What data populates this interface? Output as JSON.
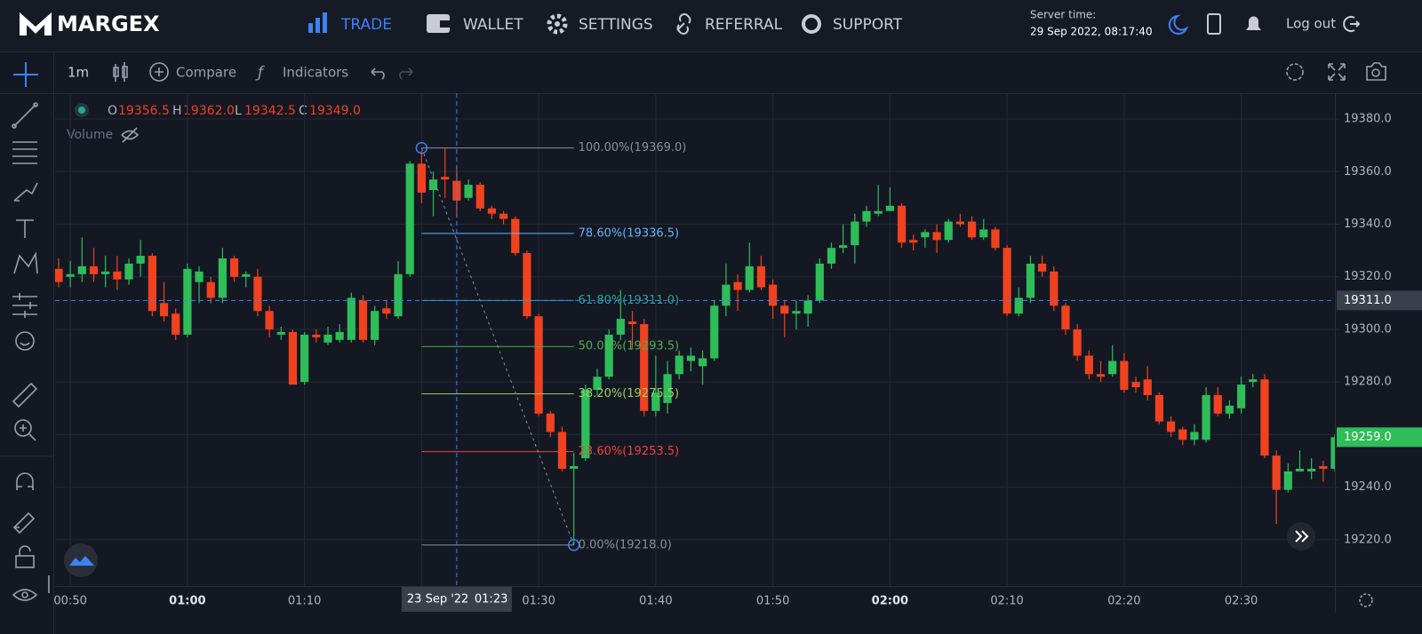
{
  "header": {
    "logo": "MARGEX",
    "nav": [
      "TRADE",
      "WALLET",
      "SETTINGS",
      "REFERRAL",
      "SUPPORT"
    ],
    "server_time_label": "Server time:",
    "server_time": "29 Sep 2022, 08:17:40",
    "logout": "Log out"
  },
  "toolbar": {
    "interval": "1m",
    "compare": "Compare",
    "indicators": "Indicators"
  },
  "legend": {
    "o_label": "O",
    "open": "19356.5",
    "h_label": "H",
    "high": "19362.0",
    "l_label": "L",
    "low": "19342.5",
    "c_label": "C",
    "close": "19349.0",
    "volume": "Volume"
  },
  "chart_data": {
    "type": "candlestick",
    "up_color": "#2ebd59",
    "down_color": "#f0421f",
    "grid": true,
    "x": [
      49,
      50,
      51,
      52,
      53,
      54,
      55,
      56,
      57,
      58,
      59,
      60,
      61,
      62,
      63,
      64,
      65,
      66,
      67,
      68,
      69,
      70,
      71,
      72,
      73,
      74,
      75,
      76,
      77,
      78,
      79,
      80,
      81,
      82,
      83,
      84,
      85,
      86,
      87,
      88,
      89,
      90,
      91,
      92,
      93,
      94,
      95,
      96,
      97,
      98,
      99,
      100,
      101,
      102,
      103,
      104,
      105,
      106,
      107,
      108,
      109,
      110,
      111,
      112,
      113,
      114,
      115,
      116,
      117,
      118,
      119,
      120,
      121,
      122,
      123,
      124,
      125,
      126,
      127,
      128,
      129,
      130,
      131,
      132,
      133,
      134,
      135,
      136,
      137,
      138,
      139,
      140,
      141,
      142,
      143,
      144,
      145,
      146,
      147,
      148,
      149,
      150,
      151,
      152,
      153,
      154,
      155,
      156,
      157,
      158
    ],
    "open": [
      19323,
      19320,
      19321,
      19324,
      19321,
      19322,
      19319,
      19325,
      19328,
      19310,
      19306,
      19298,
      19318,
      19318,
      19312,
      19327,
      19320,
      19320,
      19307,
      19298,
      19299,
      19280,
      19298,
      19295,
      19296,
      19296,
      19311,
      19296,
      19308,
      19305,
      19321,
      19363,
      19353,
      19358,
      19356.5,
      19350,
      19355,
      19346,
      19344,
      19342,
      19329,
      19305,
      19268,
      19261,
      19247,
      19251,
      19277,
      19282,
      19298,
      19303,
      19302,
      19269,
      19272,
      19283,
      19288,
      19286,
      19289,
      19309,
      19318,
      19315,
      19324,
      19317,
      19309,
      19306,
      19306,
      19311,
      19325,
      19331,
      19332,
      19341,
      19344,
      19345,
      19347,
      19334,
      19335,
      19337,
      19334,
      19341,
      19341,
      19335,
      19338,
      19331,
      19306,
      19312,
      19325,
      19322,
      19309,
      19300,
      19290,
      19283,
      19283,
      19288,
      19280,
      19281,
      19275,
      19265,
      19262,
      19258,
      19258,
      19275,
      19268,
      19270,
      19280,
      19281,
      19252,
      19239,
      19246,
      19246,
      19248,
      19247
    ],
    "high": [
      19327,
      19326,
      19335,
      19331,
      19328,
      19328,
      19327,
      19334,
      19329,
      19318,
      19308,
      19325,
      19324,
      19320,
      19331,
      19328,
      19322,
      19323,
      19309,
      19301,
      19300,
      19299,
      19300,
      19301,
      19302,
      19314,
      19313,
      19309,
      19311,
      19326,
      19364,
      19368,
      19360,
      19369,
      19362,
      19357,
      19356,
      19347,
      19345,
      19343,
      19330,
      19306,
      19269,
      19263,
      19253,
      19279,
      19285,
      19300,
      19315,
      19307,
      19304,
      19290,
      19288,
      19292,
      19293,
      19292,
      19311,
      19325,
      19321,
      19333,
      19328,
      19319,
      19311,
      19311,
      19313,
      19327,
      19333,
      19340,
      19344,
      19347,
      19355,
      19354,
      19348,
      19336,
      19338,
      19340,
      19342,
      19344,
      19343,
      19342,
      19339,
      19332,
      19316,
      19328,
      19328,
      19324,
      19310,
      19302,
      19292,
      19288,
      19294,
      19291,
      19282,
      19286,
      19276,
      19267,
      19263,
      19264,
      19278,
      19278,
      19273,
      19282,
      19283,
      19283,
      19254,
      19249,
      19254,
      19251,
      19250,
      19260
    ],
    "low": [
      19316,
      19316,
      19318,
      19318,
      19316,
      19315,
      19317,
      19320,
      19305,
      19303,
      19296,
      19297,
      19310,
      19310,
      19310,
      19318,
      19316,
      19305,
      19297,
      19296,
      19279,
      19279,
      19295,
      19294,
      19295,
      19295,
      19295,
      19294,
      19304,
      19304,
      19320,
      19348,
      19343,
      19350,
      19342.5,
      19349,
      19345,
      19342,
      19340,
      19328,
      19304,
      19267,
      19259,
      19246,
      19218,
      19250,
      19275,
      19281,
      19296,
      19293,
      19267,
      19267,
      19268,
      19281,
      19284,
      19279,
      19288,
      19305,
      19307,
      19314,
      19315,
      19304,
      19297,
      19300,
      19301,
      19310,
      19323,
      19329,
      19325,
      19339,
      19343,
      19345,
      19331,
      19330,
      19331,
      19329,
      19333,
      19339,
      19334,
      19334,
      19330,
      19305,
      19305,
      19310,
      19320,
      19307,
      19298,
      19288,
      19281,
      19280,
      19282,
      19276,
      19276,
      19273,
      19264,
      19259,
      19256,
      19256,
      19257,
      19267,
      19266,
      19268,
      19278,
      19251,
      19226,
      19238,
      19246,
      19243,
      19242,
      19246
    ],
    "close": [
      19318,
      19321,
      19324,
      19321,
      19322,
      19319,
      19325,
      19328,
      19307,
      19305,
      19298,
      19323,
      19322,
      19312,
      19327,
      19320,
      19321,
      19307,
      19300,
      19299,
      19279,
      19298,
      19297,
      19298,
      19299,
      19312,
      19296,
      19307,
      19306,
      19321,
      19363,
      19352,
      19357,
      19357,
      19349,
      19355,
      19346,
      19344,
      19342,
      19329,
      19305,
      19268,
      19261,
      19247,
      19248,
      19277,
      19282,
      19298,
      19304,
      19302,
      19269,
      19276,
      19283,
      19290,
      19290,
      19289,
      19309,
      19317,
      19315,
      19324,
      19316,
      19309,
      19306,
      19307,
      19311,
      19325,
      19331,
      19332,
      19341,
      19345,
      19345,
      19347,
      19333,
      19333,
      19337,
      19334,
      19341,
      19340,
      19335,
      19338,
      19331,
      19306,
      19312,
      19325,
      19322,
      19309,
      19300,
      19290,
      19283,
      19282,
      19288,
      19277,
      19278,
      19275,
      19265,
      19261,
      19258,
      19261,
      19275,
      19268,
      19271,
      19279,
      19281,
      19252,
      19239,
      19246,
      19247,
      19247,
      19247,
      19259
    ],
    "xlim": [
      48.7,
      158.0
    ],
    "xticks": [
      {
        "value": 50,
        "label": "00:50"
      },
      {
        "value": 60,
        "label": "01:00"
      },
      {
        "value": 70,
        "label": "01:10"
      },
      {
        "value": 80,
        "label": "01:20"
      },
      {
        "value": 90,
        "label": "01:30"
      },
      {
        "value": 100,
        "label": "01:40"
      },
      {
        "value": 110,
        "label": "01:50"
      },
      {
        "value": 120,
        "label": "02:00"
      },
      {
        "value": 130,
        "label": "02:10"
      },
      {
        "value": 140,
        "label": "02:20"
      },
      {
        "value": 150,
        "label": "02:30"
      }
    ],
    "ylim": [
      19202.4,
      19389.8
    ],
    "yticks": [
      {
        "value": 19220,
        "label": "19220.0"
      },
      {
        "value": 19240,
        "label": "19240.0"
      },
      {
        "value": 19260,
        "label": "19260.0"
      },
      {
        "value": 19280,
        "label": "19280.0"
      },
      {
        "value": 19300,
        "label": "19300.0"
      },
      {
        "value": 19320,
        "label": "19320.0"
      },
      {
        "value": 19340,
        "label": "19340.0"
      },
      {
        "value": 19360,
        "label": "19360.0"
      },
      {
        "value": 19380,
        "label": "19380.0"
      }
    ],
    "fib": {
      "x_range": [
        80,
        93
      ],
      "levels": [
        {
          "price": 19369,
          "label": "100.00%(19369.0)",
          "color": "#8a8f99"
        },
        {
          "price": 19336.5,
          "label": "78.60%(19336.5)",
          "color": "#64b5f6"
        },
        {
          "price": 19311,
          "label": "61.80%(19311.0)",
          "color": "#26a69a"
        },
        {
          "price": 19293.5,
          "label": "50.00%(19293.5)",
          "color": "#4caf50"
        },
        {
          "price": 19275.5,
          "label": "38.20%(19275.5)",
          "color": "#9ccc65"
        },
        {
          "price": 19253.5,
          "label": "23.60%(19253.5)",
          "color": "#f44336"
        },
        {
          "price": 19218,
          "label": "0.00%(19218.0)",
          "color": "#8a8f99"
        }
      ]
    },
    "crosshair": {
      "x": 83,
      "date_label": "23 Sep '22",
      "time_label": "01:23"
    },
    "price_line": {
      "value": 19311,
      "label": "19311.0",
      "color": "#3b82f6"
    },
    "last_price": {
      "value": 19259,
      "label": "19259.0"
    }
  }
}
